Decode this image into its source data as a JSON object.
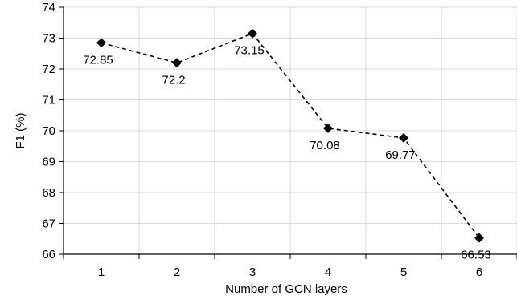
{
  "chart_data": {
    "type": "line",
    "title": "",
    "xlabel": "Number of GCN layers",
    "ylabel": "F1 (%)",
    "categories": [
      "1",
      "2",
      "3",
      "4",
      "5",
      "6"
    ],
    "y_ticks": [
      "66",
      "67",
      "68",
      "69",
      "70",
      "71",
      "72",
      "73",
      "74"
    ],
    "ylim": [
      66,
      74
    ],
    "grid": true,
    "legend": "none",
    "marker": "diamond",
    "line_style": "dashed",
    "color": "#000000",
    "series": [
      {
        "values": [
          72.85,
          72.2,
          73.15,
          70.08,
          69.77,
          66.53
        ],
        "labels": [
          "72.85",
          "72.2",
          "73.15",
          "70.08",
          "69.77",
          "66.53"
        ]
      }
    ]
  }
}
